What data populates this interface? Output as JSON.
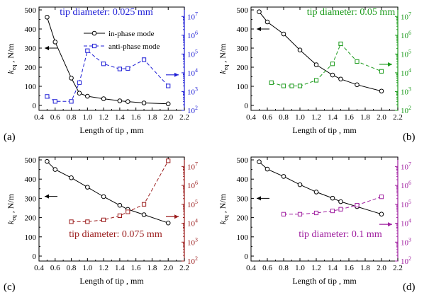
{
  "figure": {
    "legend": {
      "in_phase": "in-phase mode",
      "anti_phase": "anti-phase mode"
    }
  },
  "chart_data": [
    {
      "type": "line",
      "panel_label": "(a)",
      "title": "tip diameter: 0.025 mm",
      "title_color": "#1f1fd6",
      "right_color": "#1f1fd6",
      "xlabel": "Length of tip , mm",
      "ylabel_main": "k",
      "ylabel_sub": "eq",
      "ylabel_unit": " , N/m",
      "xlim": [
        0.4,
        2.2
      ],
      "xticks": [
        "0.4",
        "0.6",
        "0.8",
        "1.0",
        "1.2",
        "1.4",
        "1.6",
        "1.8",
        "2.0",
        "2.2"
      ],
      "ylim_left": [
        0,
        500
      ],
      "yticks_left": [
        "0",
        "100",
        "200",
        "300",
        "400",
        "500"
      ],
      "ylim_right_log10": [
        2,
        7.5
      ],
      "yticks_right": [
        {
          "base": "10",
          "exp": "2"
        },
        {
          "base": "10",
          "exp": "3"
        },
        {
          "base": "10",
          "exp": "4"
        },
        {
          "base": "10",
          "exp": "5"
        },
        {
          "base": "10",
          "exp": "6"
        },
        {
          "base": "10",
          "exp": "7"
        }
      ],
      "legend": "top-right",
      "series": [
        {
          "name": "in-phase mode",
          "axis": "left",
          "style": "solid",
          "color": "#000000",
          "x": [
            0.5,
            0.6,
            0.8,
            0.9,
            1.0,
            1.2,
            1.4,
            1.5,
            1.7,
            2.0
          ],
          "y": [
            462,
            332,
            143,
            64,
            48,
            35,
            24,
            20,
            13,
            8
          ]
        },
        {
          "name": "anti-phase mode",
          "axis": "right",
          "style": "dashed",
          "color": "#1f1fd6",
          "x": [
            0.5,
            0.6,
            0.8,
            0.9,
            1.0,
            1.2,
            1.4,
            1.5,
            1.7,
            2.0
          ],
          "y": [
            550,
            300,
            300,
            3000,
            150000,
            30000,
            16000,
            17000,
            50000,
            2000
          ]
        }
      ]
    },
    {
      "type": "line",
      "panel_label": "(b)",
      "title": "tip diameter: 0.05 mm",
      "title_color": "#1a9a1a",
      "right_color": "#1a9a1a",
      "xlabel": "Length of tip , mm",
      "ylabel_main": "k",
      "ylabel_sub": "eq",
      "ylabel_unit": " , N/m",
      "xlim": [
        0.4,
        2.2
      ],
      "xticks": [
        "0.4",
        "0.6",
        "0.8",
        "1.0",
        "1.2",
        "1.4",
        "1.6",
        "1.8",
        "2.0",
        "2.2"
      ],
      "ylim_left": [
        0,
        500
      ],
      "yticks_left": [
        "0",
        "100",
        "200",
        "300",
        "400",
        "500"
      ],
      "ylim_right_log10": [
        2,
        7.5
      ],
      "yticks_right": [
        {
          "base": "10",
          "exp": "2"
        },
        {
          "base": "10",
          "exp": "3"
        },
        {
          "base": "10",
          "exp": "4"
        },
        {
          "base": "10",
          "exp": "5"
        },
        {
          "base": "10",
          "exp": "6"
        },
        {
          "base": "10",
          "exp": "7"
        }
      ],
      "series": [
        {
          "axis": "left",
          "style": "solid",
          "color": "#000000",
          "x": [
            0.5,
            0.6,
            0.8,
            1.0,
            1.2,
            1.4,
            1.5,
            1.7,
            2.0
          ],
          "y": [
            490,
            437,
            374,
            290,
            213,
            159,
            138,
            108,
            75
          ]
        },
        {
          "axis": "right",
          "style": "dashed",
          "color": "#1a9a1a",
          "x": [
            0.65,
            0.8,
            0.9,
            1.0,
            1.2,
            1.4,
            1.5,
            1.7,
            2.0
          ],
          "y": [
            3000,
            2000,
            2000,
            2000,
            4000,
            30000,
            350000,
            40000,
            12000
          ]
        }
      ]
    },
    {
      "type": "line",
      "panel_label": "(c)",
      "title": "tip diameter: 0.075 mm",
      "title_color": "#9b1c1c",
      "right_color": "#9b1c1c",
      "xlabel": "Length of tip , mm",
      "ylabel_main": "k",
      "ylabel_sub": "eq",
      "ylabel_unit": " , N/m",
      "xlim": [
        0.4,
        2.2
      ],
      "xticks": [
        "0.4",
        "0.6",
        "0.8",
        "1.0",
        "1.2",
        "1.4",
        "1.6",
        "1.8",
        "2.0",
        "2.2"
      ],
      "ylim_left": [
        0,
        500
      ],
      "yticks_left": [
        "0",
        "100",
        "200",
        "300",
        "400",
        "500"
      ],
      "ylim_right_log10": [
        2,
        7.5
      ],
      "yticks_right": [
        {
          "base": "10",
          "exp": "2"
        },
        {
          "base": "10",
          "exp": "3"
        },
        {
          "base": "10",
          "exp": "4"
        },
        {
          "base": "10",
          "exp": "5"
        },
        {
          "base": "10",
          "exp": "6"
        },
        {
          "base": "10",
          "exp": "7"
        }
      ],
      "series": [
        {
          "axis": "left",
          "style": "solid",
          "color": "#000000",
          "x": [
            0.5,
            0.6,
            0.8,
            1.0,
            1.2,
            1.4,
            1.5,
            1.7,
            2.0
          ],
          "y": [
            492,
            450,
            407,
            358,
            309,
            264,
            243,
            215,
            172
          ]
        },
        {
          "axis": "right",
          "style": "dashed",
          "color": "#9b1c1c",
          "x": [
            0.8,
            1.0,
            1.2,
            1.4,
            1.5,
            1.7,
            2.0
          ],
          "y": [
            12000,
            12000,
            15000,
            25000,
            40000,
            100000,
            20000000
          ]
        }
      ]
    },
    {
      "type": "line",
      "panel_label": "(d)",
      "title": "tip diameter: 0.1 mm",
      "title_color": "#a020a0",
      "right_color": "#a020a0",
      "xlabel": "Length of tip , mm",
      "ylabel_main": "k",
      "ylabel_sub": "eq",
      "ylabel_unit": " , N/m",
      "xlim": [
        0.4,
        2.2
      ],
      "xticks": [
        "0.4",
        "0.6",
        "0.8",
        "1.0",
        "1.2",
        "1.4",
        "1.6",
        "1.8",
        "2.0",
        "2.2"
      ],
      "ylim_left": [
        0,
        500
      ],
      "yticks_left": [
        "0",
        "100",
        "200",
        "300",
        "400",
        "500"
      ],
      "ylim_right_log10": [
        2,
        7.5
      ],
      "yticks_right": [
        {
          "base": "10",
          "exp": "2"
        },
        {
          "base": "10",
          "exp": "3"
        },
        {
          "base": "10",
          "exp": "4"
        },
        {
          "base": "10",
          "exp": "5"
        },
        {
          "base": "10",
          "exp": "6"
        },
        {
          "base": "10",
          "exp": "7"
        }
      ],
      "series": [
        {
          "axis": "left",
          "style": "solid",
          "color": "#000000",
          "x": [
            0.5,
            0.6,
            0.8,
            1.0,
            1.2,
            1.4,
            1.5,
            1.7,
            2.0
          ],
          "y": [
            490,
            452,
            414,
            371,
            333,
            301,
            283,
            257,
            218
          ]
        },
        {
          "axis": "right",
          "style": "dashed",
          "color": "#a020a0",
          "x": [
            0.8,
            1.0,
            1.2,
            1.4,
            1.5,
            1.7,
            2.0
          ],
          "y": [
            30000,
            30000,
            35000,
            45000,
            55000,
            90000,
            250000
          ]
        }
      ]
    }
  ]
}
